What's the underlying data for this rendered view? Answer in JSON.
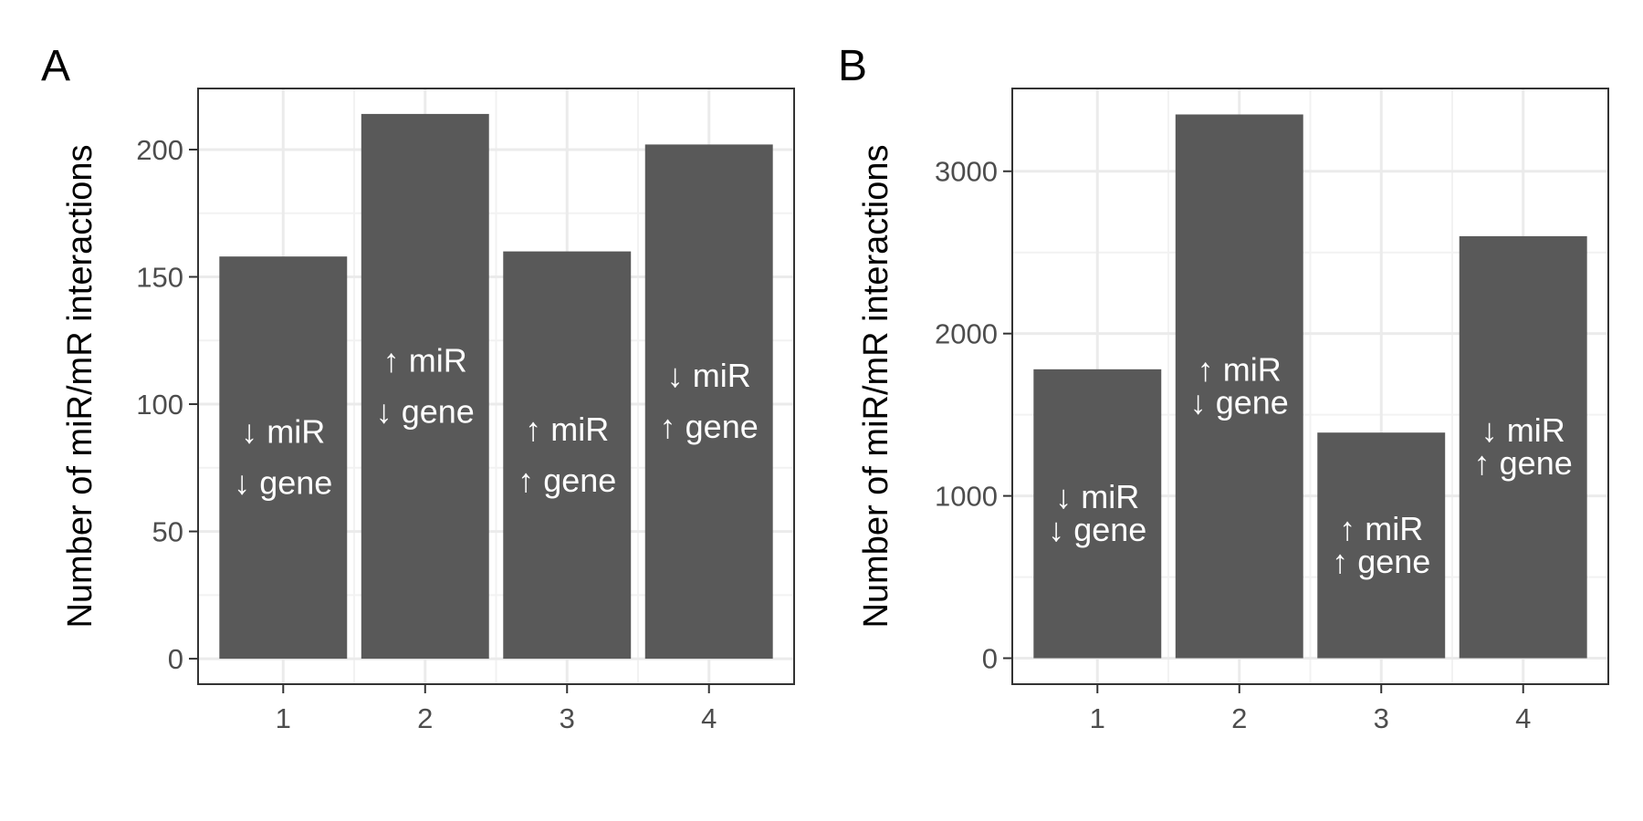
{
  "chart_data": [
    {
      "panel_label": "A",
      "type": "bar",
      "categories": [
        "1",
        "2",
        "3",
        "4"
      ],
      "values": [
        158,
        214,
        160,
        202
      ],
      "bar_labels": [
        [
          "↓ miR",
          "↓ gene"
        ],
        [
          "↑ miR",
          "↓ gene"
        ],
        [
          "↑ miR",
          "↑ gene"
        ],
        [
          "↓ miR",
          "↑ gene"
        ]
      ],
      "ylabel": "Number of miR/mR interactions",
      "xlabel": "",
      "ylim": [
        -10,
        224
      ],
      "yticks": [
        0,
        50,
        100,
        150,
        200
      ],
      "ytick_labels": [
        "0",
        "50",
        "100",
        "150",
        "200"
      ],
      "grid": true,
      "bar_color": "#595959"
    },
    {
      "panel_label": "B",
      "type": "bar",
      "categories": [
        "1",
        "2",
        "3",
        "4"
      ],
      "values": [
        1780,
        3350,
        1390,
        2600
      ],
      "bar_labels": [
        [
          "↓ miR",
          "↓ gene"
        ],
        [
          "↑ miR",
          "↓ gene"
        ],
        [
          "↑ miR",
          "↑ gene"
        ],
        [
          "↓ miR",
          "↑ gene"
        ]
      ],
      "ylabel": "Number of miR/mR interactions",
      "xlabel": "",
      "ylim": [
        -160,
        3510
      ],
      "yticks": [
        0,
        1000,
        2000,
        3000
      ],
      "ytick_labels": [
        "0",
        "1000",
        "2000",
        "3000"
      ],
      "grid": true,
      "bar_color": "#595959"
    }
  ],
  "colors": {
    "bar": "#595959",
    "grid_major": "#ebebeb",
    "grid_minor": "#f2f2f2",
    "panel_border": "#333333",
    "tick_text": "#4d4d4d",
    "bar_text": "#ffffff"
  }
}
